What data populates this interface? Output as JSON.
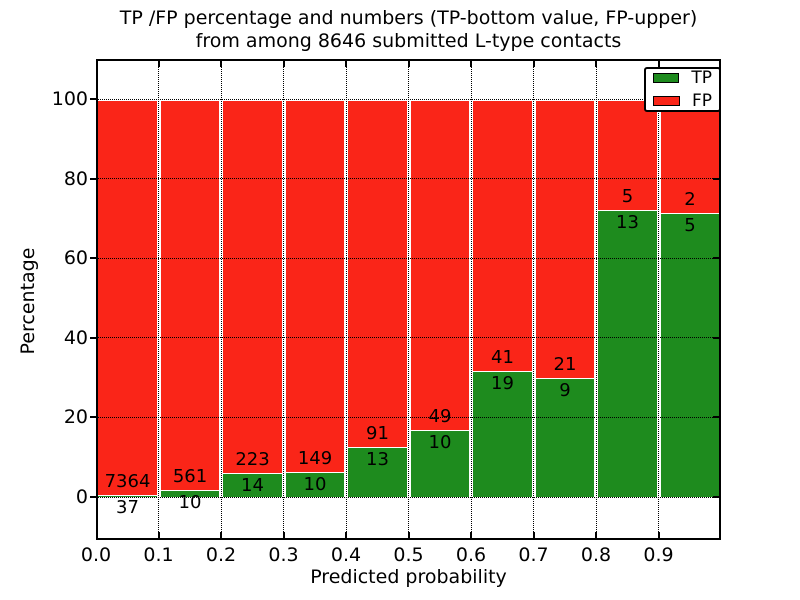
{
  "title": {
    "line1": "TP /FP percentage and numbers (TP-bottom value, FP-upper)",
    "line2": "from among 8646 submitted L-type contacts"
  },
  "axes": {
    "xlabel": "Predicted probability",
    "ylabel": "Percentage",
    "xtick_labels": [
      "0.0",
      "0.1",
      "0.2",
      "0.3",
      "0.4",
      "0.5",
      "0.6",
      "0.7",
      "0.8",
      "0.9"
    ],
    "ytick_values": [
      0,
      20,
      40,
      60,
      80,
      100
    ]
  },
  "legend": {
    "entries": [
      {
        "label": "TP",
        "color": "#1e8b1e"
      },
      {
        "label": "FP",
        "color": "#fa2518"
      }
    ]
  },
  "colors": {
    "tp_green": "#1e8b1e",
    "fp_red": "#fa2518",
    "bar_edge": "#ffffff",
    "grid": "#000000"
  },
  "chart_data": {
    "type": "bar",
    "subtype": "stacked-percentage",
    "title": "TP /FP percentage and numbers (TP-bottom value, FP-upper) from among 8646 submitted L-type contacts",
    "xlabel": "Predicted probability",
    "ylabel": "Percentage",
    "total_contacts": 8646,
    "xlim": [
      0.0,
      1.0
    ],
    "ylim": [
      -11,
      110
    ],
    "grid": true,
    "legend_position": "upper right",
    "categories": [
      "0.0-0.1",
      "0.1-0.2",
      "0.2-0.3",
      "0.3-0.4",
      "0.4-0.5",
      "0.5-0.6",
      "0.6-0.7",
      "0.7-0.8",
      "0.8-0.9",
      "0.9-1.0"
    ],
    "series": [
      {
        "name": "TP",
        "color": "#1e8b1e",
        "values": [
          37,
          10,
          14,
          10,
          13,
          10,
          19,
          9,
          13,
          5
        ]
      },
      {
        "name": "FP",
        "color": "#fa2518",
        "values": [
          7364,
          561,
          223,
          149,
          91,
          49,
          41,
          21,
          5,
          2
        ]
      }
    ],
    "tp_percent": [
      0.5,
      1.75,
      5.91,
      6.29,
      12.5,
      16.95,
      31.67,
      30.0,
      72.22,
      71.43
    ],
    "fp_percent": [
      99.5,
      98.25,
      94.09,
      93.71,
      87.5,
      83.05,
      68.33,
      70.0,
      27.78,
      28.57
    ]
  }
}
